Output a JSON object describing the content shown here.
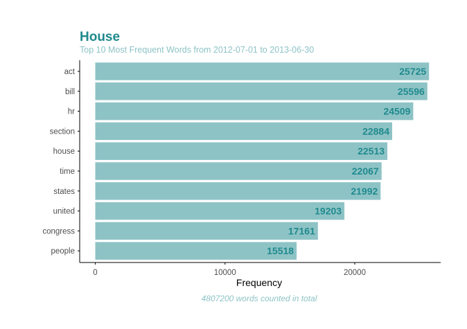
{
  "chart_data": {
    "type": "bar",
    "orientation": "horizontal",
    "title": "House",
    "subtitle": "Top 10 Most Frequent Words from 2012-07-01 to 2013-06-30",
    "caption": "4807200 words counted in total",
    "xlabel": "Frequency",
    "ylabel": "",
    "categories": [
      "act",
      "bill",
      "hr",
      "section",
      "house",
      "time",
      "states",
      "united",
      "congress",
      "people"
    ],
    "values": [
      25725,
      25596,
      24509,
      22884,
      22513,
      22067,
      21992,
      19203,
      17161,
      15518
    ],
    "xlim": [
      0,
      27000
    ],
    "xticks": [
      0,
      10000,
      20000
    ],
    "grid": false,
    "legend": "none",
    "colors": {
      "bar": "#8ec3c6",
      "value_label": "#1f8a8d",
      "title": "#1f8a8d",
      "subtitle": "#8ec3c6",
      "axis": "#000000",
      "tick_label": "#4d4d4d"
    }
  }
}
